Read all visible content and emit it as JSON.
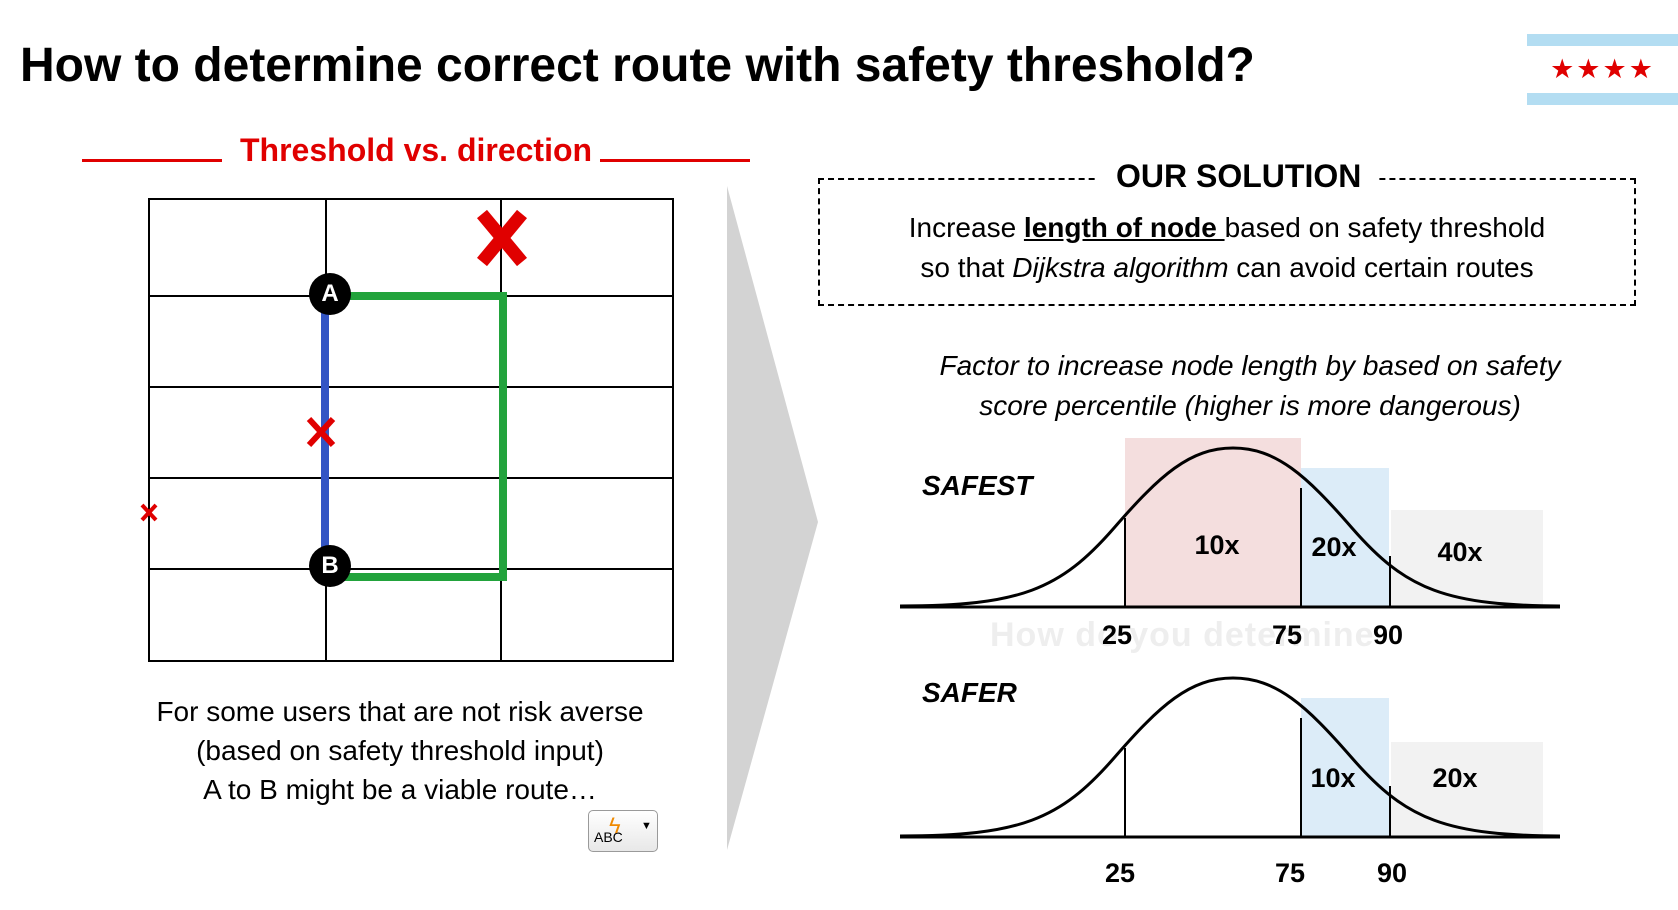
{
  "title": "How to determine correct route with safety threshold?",
  "flag": {
    "stars": "★★★★",
    "icon": "chicago-flag-icon"
  },
  "left": {
    "heading": "Threshold vs. direction",
    "node_a": "A",
    "node_b": "B",
    "caption": [
      "For some users that are not risk averse",
      "(based on safety threshold input)",
      "A to B might be a viable route…"
    ],
    "spellcheck_label": "ABC"
  },
  "solution": {
    "label": "OUR SOLUTION",
    "line1_pre": "Increase ",
    "line1_bold": "length of node ",
    "line1_post": "based on safety threshold",
    "line2_pre": "so that ",
    "line2_italic": "Dijkstra algorithm",
    "line2_post": " can avoid certain routes"
  },
  "factor_text": [
    "Factor to increase node length by based on safety",
    "score percentile (higher is more dangerous)"
  ],
  "ghost_text": "How do you determine",
  "safest": {
    "label": "SAFEST",
    "mults": [
      "10x",
      "20x",
      "40x"
    ],
    "ticks": [
      "25",
      "75",
      "90"
    ]
  },
  "safer": {
    "label": "SAFER",
    "mults": [
      "10x",
      "20x"
    ],
    "ticks": [
      "25",
      "75",
      "90"
    ]
  },
  "colors": {
    "red": "#e00000",
    "green": "#22a33c",
    "blue": "#3355c4",
    "pink": "#f4dede",
    "lightblue": "#dcecf8",
    "gray": "#f2f2f2"
  }
}
